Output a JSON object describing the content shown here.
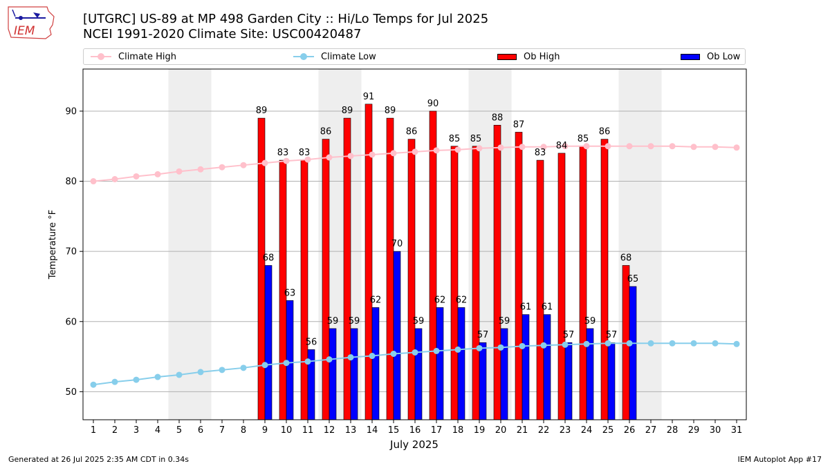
{
  "header": {
    "title_line1": "[UTGRC] US-89 at MP 498 Garden City :: Hi/Lo Temps for Jul 2025",
    "title_line2": "NCEI 1991-2020 Climate Site: USC00420487",
    "logo_text": "IEM"
  },
  "footer": {
    "generated": "Generated at 26 Jul 2025 2:35 AM CDT in 0.34s",
    "app": "IEM Autoplot App #17"
  },
  "colors": {
    "climate_high": "#ffc0cb",
    "climate_low": "#87ceeb",
    "ob_high": "#ff0000",
    "ob_low": "#0000ff",
    "weekend_shade": "#eeeeee"
  },
  "chart_data": {
    "type": "bar",
    "xlabel": "July 2025",
    "ylabel": "Temperature °F",
    "ylim": [
      46,
      96
    ],
    "yticks": [
      50,
      60,
      70,
      80,
      90
    ],
    "grid": "horizontal",
    "legend_placement": "top",
    "x": [
      1,
      2,
      3,
      4,
      5,
      6,
      7,
      8,
      9,
      10,
      11,
      12,
      13,
      14,
      15,
      16,
      17,
      18,
      19,
      20,
      21,
      22,
      23,
      24,
      25,
      26,
      27,
      28,
      29,
      30,
      31
    ],
    "shaded_days": [
      [
        5,
        6
      ],
      [
        12,
        13
      ],
      [
        19,
        20
      ],
      [
        26,
        27
      ]
    ],
    "series": [
      {
        "name": "Climate High",
        "kind": "line",
        "values": [
          80.0,
          80.3,
          80.7,
          81.0,
          81.4,
          81.7,
          82.0,
          82.3,
          82.6,
          82.9,
          83.1,
          83.4,
          83.6,
          83.8,
          84.0,
          84.2,
          84.4,
          84.5,
          84.7,
          84.8,
          84.9,
          84.9,
          85.0,
          85.0,
          85.0,
          85.0,
          85.0,
          85.0,
          84.9,
          84.9,
          84.8
        ]
      },
      {
        "name": "Climate Low",
        "kind": "line",
        "values": [
          51.0,
          51.4,
          51.7,
          52.1,
          52.4,
          52.8,
          53.1,
          53.4,
          53.8,
          54.1,
          54.3,
          54.6,
          54.9,
          55.1,
          55.4,
          55.6,
          55.8,
          56.0,
          56.2,
          56.3,
          56.5,
          56.6,
          56.7,
          56.8,
          56.9,
          56.9,
          56.9,
          56.9,
          56.9,
          56.9,
          56.8
        ]
      },
      {
        "name": "Ob High",
        "kind": "bar",
        "values": [
          null,
          null,
          null,
          null,
          null,
          null,
          null,
          null,
          89,
          83,
          83,
          86,
          89,
          91,
          89,
          86,
          90,
          85,
          85,
          88,
          87,
          83,
          84,
          85,
          86,
          68,
          null,
          null,
          null,
          null,
          null
        ]
      },
      {
        "name": "Ob Low",
        "kind": "bar",
        "values": [
          null,
          null,
          null,
          null,
          null,
          null,
          null,
          null,
          68,
          63,
          56,
          59,
          59,
          62,
          70,
          59,
          62,
          62,
          57,
          59,
          61,
          61,
          57,
          59,
          57,
          65,
          null,
          null,
          null,
          null,
          null
        ]
      }
    ]
  }
}
